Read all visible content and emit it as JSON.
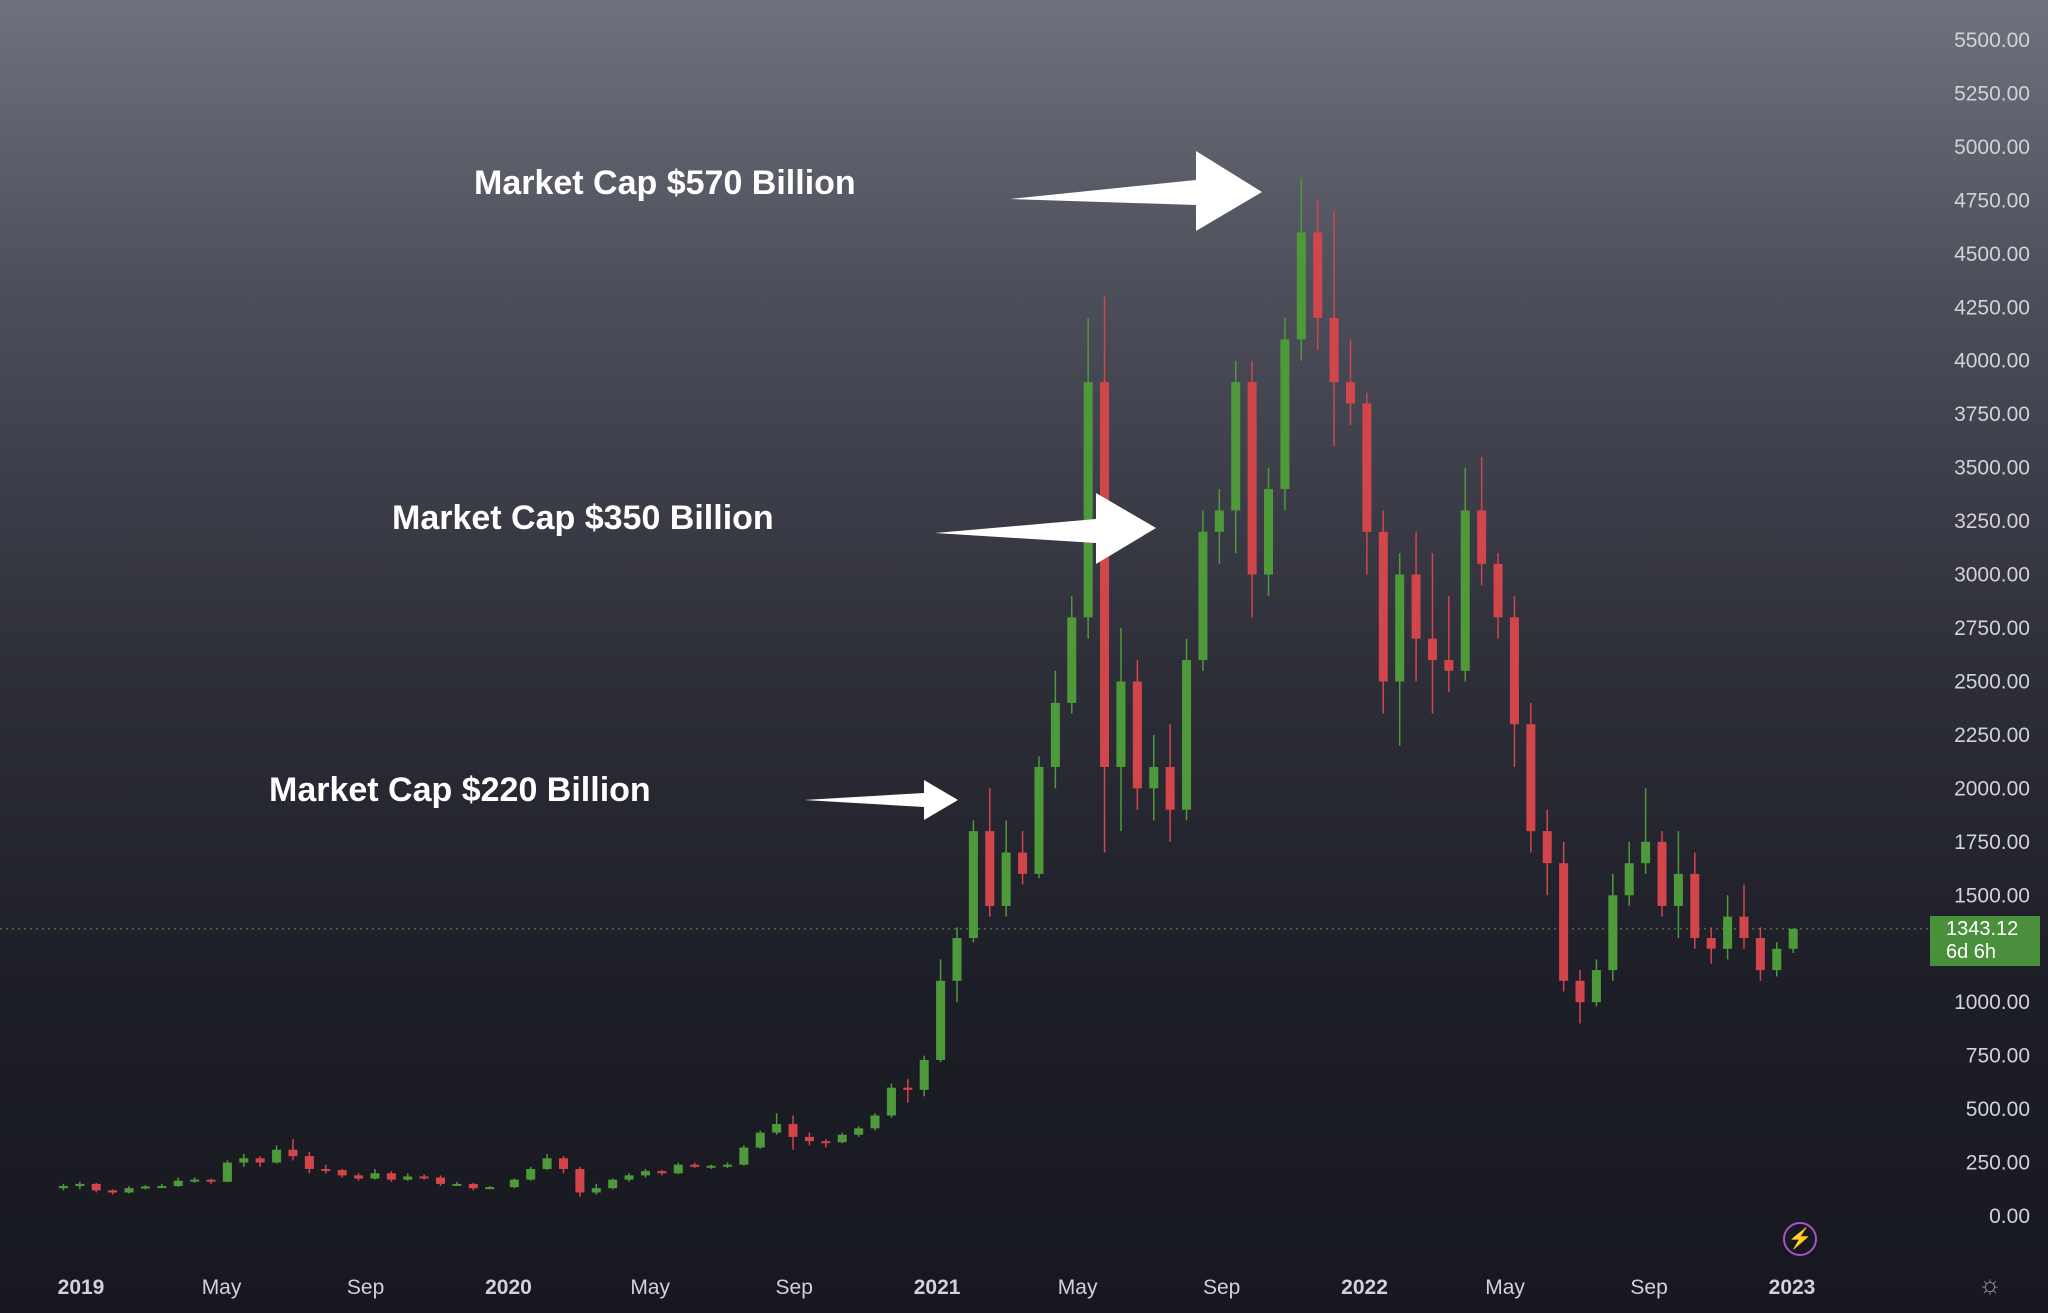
{
  "chart_data": {
    "type": "candlestick",
    "title": "",
    "xlabel": "",
    "ylabel": "",
    "ylim": [
      0,
      5500
    ],
    "y_ticks": [
      "5500.00",
      "5250.00",
      "5000.00",
      "4750.00",
      "4500.00",
      "4250.00",
      "4000.00",
      "3750.00",
      "3500.00",
      "3250.00",
      "3000.00",
      "2750.00",
      "2500.00",
      "2250.00",
      "2000.00",
      "1750.00",
      "1500.00",
      "1250.00",
      "1000.00",
      "750.00",
      "500.00",
      "250.00",
      "0.00"
    ],
    "x_ticks": [
      {
        "label": "2019",
        "bold": true,
        "date": "2019-01-01"
      },
      {
        "label": "May",
        "bold": false,
        "date": "2019-05-01"
      },
      {
        "label": "Sep",
        "bold": false,
        "date": "2019-09-01"
      },
      {
        "label": "2020",
        "bold": true,
        "date": "2020-01-01"
      },
      {
        "label": "May",
        "bold": false,
        "date": "2020-05-01"
      },
      {
        "label": "Sep",
        "bold": false,
        "date": "2020-09-01"
      },
      {
        "label": "2021",
        "bold": true,
        "date": "2021-01-01"
      },
      {
        "label": "May",
        "bold": false,
        "date": "2021-05-01"
      },
      {
        "label": "Sep",
        "bold": false,
        "date": "2021-09-01"
      },
      {
        "label": "2022",
        "bold": true,
        "date": "2022-01-01"
      },
      {
        "label": "May",
        "bold": false,
        "date": "2022-05-01"
      },
      {
        "label": "Sep",
        "bold": false,
        "date": "2022-09-01"
      },
      {
        "label": "2023",
        "bold": true,
        "date": "2023-01-01"
      }
    ],
    "series": [
      {
        "interval": "weekly",
        "ohlc": [
          [
            "2018-12-17",
            130,
            150,
            120,
            140
          ],
          [
            "2018-12-31",
            140,
            160,
            125,
            150
          ],
          [
            "2019-01-14",
            150,
            155,
            110,
            120
          ],
          [
            "2019-01-28",
            120,
            125,
            100,
            110
          ],
          [
            "2019-02-11",
            110,
            140,
            105,
            130
          ],
          [
            "2019-02-25",
            130,
            145,
            125,
            138
          ],
          [
            "2019-03-11",
            138,
            150,
            130,
            140
          ],
          [
            "2019-03-25",
            140,
            180,
            135,
            165
          ],
          [
            "2019-04-08",
            165,
            180,
            155,
            170
          ],
          [
            "2019-04-22",
            170,
            175,
            150,
            160
          ],
          [
            "2019-05-06",
            160,
            260,
            158,
            250
          ],
          [
            "2019-05-20",
            250,
            290,
            230,
            270
          ],
          [
            "2019-06-03",
            270,
            280,
            230,
            250
          ],
          [
            "2019-06-17",
            250,
            330,
            245,
            310
          ],
          [
            "2019-07-01",
            310,
            360,
            260,
            280
          ],
          [
            "2019-07-15",
            280,
            300,
            200,
            220
          ],
          [
            "2019-07-29",
            220,
            240,
            200,
            215
          ],
          [
            "2019-08-12",
            215,
            220,
            180,
            190
          ],
          [
            "2019-08-26",
            190,
            200,
            165,
            175
          ],
          [
            "2019-09-09",
            175,
            220,
            170,
            200
          ],
          [
            "2019-09-23",
            200,
            210,
            160,
            170
          ],
          [
            "2019-10-07",
            170,
            200,
            165,
            185
          ],
          [
            "2019-10-21",
            185,
            195,
            170,
            180
          ],
          [
            "2019-11-04",
            180,
            190,
            140,
            150
          ],
          [
            "2019-11-18",
            150,
            160,
            140,
            150
          ],
          [
            "2019-12-02",
            150,
            155,
            120,
            130
          ],
          [
            "2019-12-16",
            130,
            140,
            125,
            135
          ],
          [
            "2020-01-06",
            135,
            175,
            130,
            170
          ],
          [
            "2020-01-20",
            170,
            230,
            165,
            220
          ],
          [
            "2020-02-03",
            220,
            290,
            215,
            270
          ],
          [
            "2020-02-17",
            270,
            280,
            200,
            220
          ],
          [
            "2020-03-02",
            220,
            230,
            90,
            110
          ],
          [
            "2020-03-16",
            110,
            150,
            100,
            130
          ],
          [
            "2020-03-30",
            130,
            175,
            125,
            170
          ],
          [
            "2020-04-13",
            170,
            200,
            160,
            190
          ],
          [
            "2020-04-27",
            190,
            220,
            180,
            210
          ],
          [
            "2020-05-11",
            210,
            215,
            190,
            200
          ],
          [
            "2020-05-25",
            200,
            250,
            195,
            240
          ],
          [
            "2020-06-08",
            240,
            250,
            225,
            230
          ],
          [
            "2020-06-22",
            230,
            240,
            220,
            235
          ],
          [
            "2020-07-06",
            235,
            250,
            225,
            240
          ],
          [
            "2020-07-20",
            240,
            330,
            235,
            320
          ],
          [
            "2020-08-03",
            320,
            400,
            315,
            390
          ],
          [
            "2020-08-17",
            390,
            480,
            380,
            430
          ],
          [
            "2020-08-31",
            430,
            470,
            310,
            370
          ],
          [
            "2020-09-14",
            370,
            390,
            330,
            350
          ],
          [
            "2020-09-28",
            350,
            360,
            320,
            345
          ],
          [
            "2020-10-12",
            345,
            390,
            340,
            380
          ],
          [
            "2020-10-26",
            380,
            420,
            370,
            410
          ],
          [
            "2020-11-09",
            410,
            480,
            400,
            470
          ],
          [
            "2020-11-23",
            470,
            620,
            460,
            600
          ],
          [
            "2020-12-07",
            600,
            640,
            530,
            590
          ],
          [
            "2020-12-21",
            590,
            750,
            560,
            730
          ],
          [
            "2021-01-04",
            730,
            1200,
            720,
            1100
          ],
          [
            "2021-01-18",
            1100,
            1350,
            1000,
            1300
          ],
          [
            "2021-02-01",
            1300,
            1850,
            1280,
            1800
          ],
          [
            "2021-02-15",
            1800,
            2000,
            1400,
            1450
          ],
          [
            "2021-03-01",
            1450,
            1850,
            1400,
            1700
          ],
          [
            "2021-03-15",
            1700,
            1800,
            1550,
            1600
          ],
          [
            "2021-03-29",
            1600,
            2150,
            1580,
            2100
          ],
          [
            "2021-04-12",
            2100,
            2550,
            2000,
            2400
          ],
          [
            "2021-04-26",
            2400,
            2900,
            2350,
            2800
          ],
          [
            "2021-05-10",
            2800,
            4200,
            2700,
            3900
          ],
          [
            "2021-05-24",
            3900,
            4300,
            1700,
            2100
          ],
          [
            "2021-06-07",
            2100,
            2750,
            1800,
            2500
          ],
          [
            "2021-06-21",
            2500,
            2600,
            1900,
            2000
          ],
          [
            "2021-07-05",
            2000,
            2250,
            1850,
            2100
          ],
          [
            "2021-07-19",
            2100,
            2300,
            1750,
            1900
          ],
          [
            "2021-08-02",
            1900,
            2700,
            1850,
            2600
          ],
          [
            "2021-08-16",
            2600,
            3300,
            2550,
            3200
          ],
          [
            "2021-08-30",
            3200,
            3400,
            3050,
            3300
          ],
          [
            "2021-09-13",
            3300,
            4000,
            3100,
            3900
          ],
          [
            "2021-09-27",
            3900,
            4000,
            2800,
            3000
          ],
          [
            "2021-10-11",
            3000,
            3500,
            2900,
            3400
          ],
          [
            "2021-10-25",
            3400,
            4200,
            3300,
            4100
          ],
          [
            "2021-11-08",
            4100,
            4850,
            4000,
            4600
          ],
          [
            "2021-11-22",
            4600,
            4750,
            4050,
            4200
          ],
          [
            "2021-12-06",
            4200,
            4700,
            3600,
            3900
          ],
          [
            "2021-12-20",
            3900,
            4100,
            3700,
            3800
          ],
          [
            "2022-01-03",
            3800,
            3850,
            3000,
            3200
          ],
          [
            "2022-01-17",
            3200,
            3300,
            2350,
            2500
          ],
          [
            "2022-01-31",
            2500,
            3100,
            2200,
            3000
          ],
          [
            "2022-02-14",
            3000,
            3200,
            2500,
            2700
          ],
          [
            "2022-02-28",
            2700,
            3100,
            2350,
            2600
          ],
          [
            "2022-03-14",
            2600,
            2900,
            2450,
            2550
          ],
          [
            "2022-03-28",
            2550,
            3500,
            2500,
            3300
          ],
          [
            "2022-04-11",
            3300,
            3550,
            2950,
            3050
          ],
          [
            "2022-04-25",
            3050,
            3100,
            2700,
            2800
          ],
          [
            "2022-05-09",
            2800,
            2900,
            2100,
            2300
          ],
          [
            "2022-05-23",
            2300,
            2400,
            1700,
            1800
          ],
          [
            "2022-06-06",
            1800,
            1900,
            1500,
            1650
          ],
          [
            "2022-06-20",
            1650,
            1750,
            1050,
            1100
          ],
          [
            "2022-07-04",
            1100,
            1150,
            900,
            1000
          ],
          [
            "2022-07-18",
            1000,
            1200,
            980,
            1150
          ],
          [
            "2022-08-01",
            1150,
            1600,
            1100,
            1500
          ],
          [
            "2022-08-15",
            1500,
            1750,
            1450,
            1650
          ],
          [
            "2022-08-29",
            1650,
            2000,
            1600,
            1750
          ],
          [
            "2022-09-12",
            1750,
            1800,
            1400,
            1450
          ],
          [
            "2022-09-26",
            1450,
            1800,
            1300,
            1600
          ],
          [
            "2022-10-10",
            1600,
            1700,
            1250,
            1300
          ],
          [
            "2022-10-24",
            1300,
            1350,
            1180,
            1250
          ],
          [
            "2022-11-07",
            1250,
            1500,
            1200,
            1400
          ],
          [
            "2022-11-21",
            1400,
            1550,
            1250,
            1300
          ],
          [
            "2022-12-05",
            1300,
            1350,
            1100,
            1150
          ],
          [
            "2022-12-19",
            1150,
            1280,
            1120,
            1250
          ],
          [
            "2023-01-02",
            1250,
            1345,
            1230,
            1343.12
          ]
        ]
      }
    ],
    "last_price": "1343.12",
    "countdown": "6d 6h",
    "annotations": [
      {
        "text": "Market Cap $570 Billion"
      },
      {
        "text": "Market Cap $350 Billion"
      },
      {
        "text": "Market Cap $220 Billion"
      }
    ],
    "colors": {
      "up": "#4e9a3a",
      "down": "#d2454a",
      "price_line": "#4a8f3c",
      "arrow": "#ffffff"
    },
    "grid": false
  },
  "icons": {
    "lightning": "lightning-icon",
    "settings": "gear-icon"
  }
}
